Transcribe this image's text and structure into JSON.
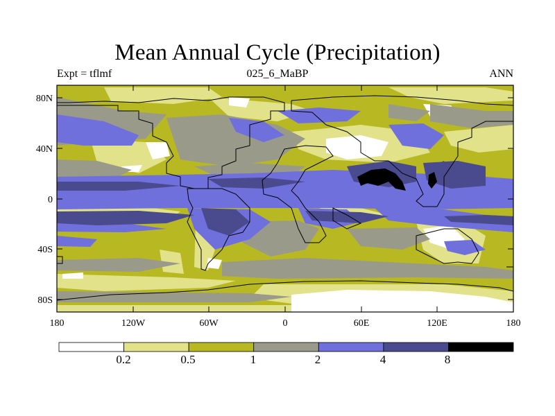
{
  "title": "Mean Annual Cycle (Precipitation)",
  "subtitle_left": "Expt = tflmf",
  "subtitle_center": "025_6_MaBP",
  "subtitle_right": "ANN",
  "y_ticks": [
    "80N",
    "40N",
    "0",
    "40S",
    "80S"
  ],
  "x_ticks": [
    "180",
    "120W",
    "60W",
    "0",
    "60E",
    "120E",
    "180"
  ],
  "colorbar": {
    "labels": [
      "0.2",
      "0.5",
      "1",
      "2",
      "4",
      "8"
    ],
    "colors": [
      "#ffffff",
      "#e2e28a",
      "#b8b822",
      "#9a9a8a",
      "#7070dd",
      "#4a4a8e",
      "#000000"
    ]
  },
  "chart_data": {
    "type": "heatmap",
    "title": "Mean Annual Cycle (Precipitation)",
    "variable": "Precipitation",
    "levels": [
      0.2,
      0.5,
      1,
      2,
      4,
      8
    ],
    "xlim": [
      -180,
      180
    ],
    "ylim": [
      -90,
      90
    ]
  }
}
